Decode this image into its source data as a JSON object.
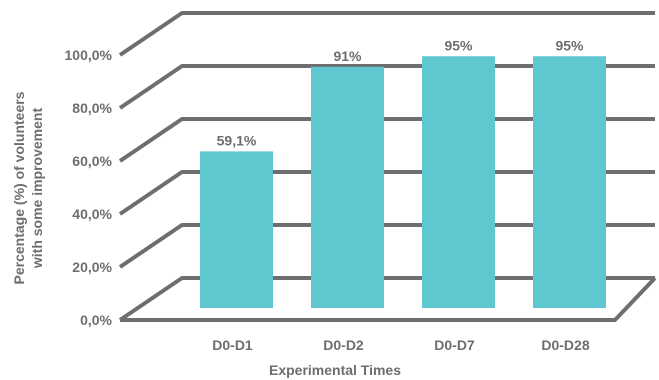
{
  "chart_data": {
    "type": "bar",
    "categories": [
      "D0-D1",
      "D0-D2",
      "D0-D7",
      "D0-D28"
    ],
    "values": [
      59.1,
      91,
      95,
      95
    ],
    "data_labels": [
      "59,1%",
      "91%",
      "95%",
      "95%"
    ],
    "yticks": [
      "0,0%",
      "20,0%",
      "40,0%",
      "60,0%",
      "80,0%",
      "100,0%"
    ],
    "ylim": [
      0,
      100
    ],
    "xlabel": "Experimental Times",
    "ylabel_lines": [
      "Percentage (%) of volunteers",
      "with some improvement"
    ],
    "grid": true,
    "style": "3d-box",
    "colors": {
      "bar": "#5fc7cf",
      "grid": "#6d6e71",
      "text": "#6d6e71"
    }
  }
}
